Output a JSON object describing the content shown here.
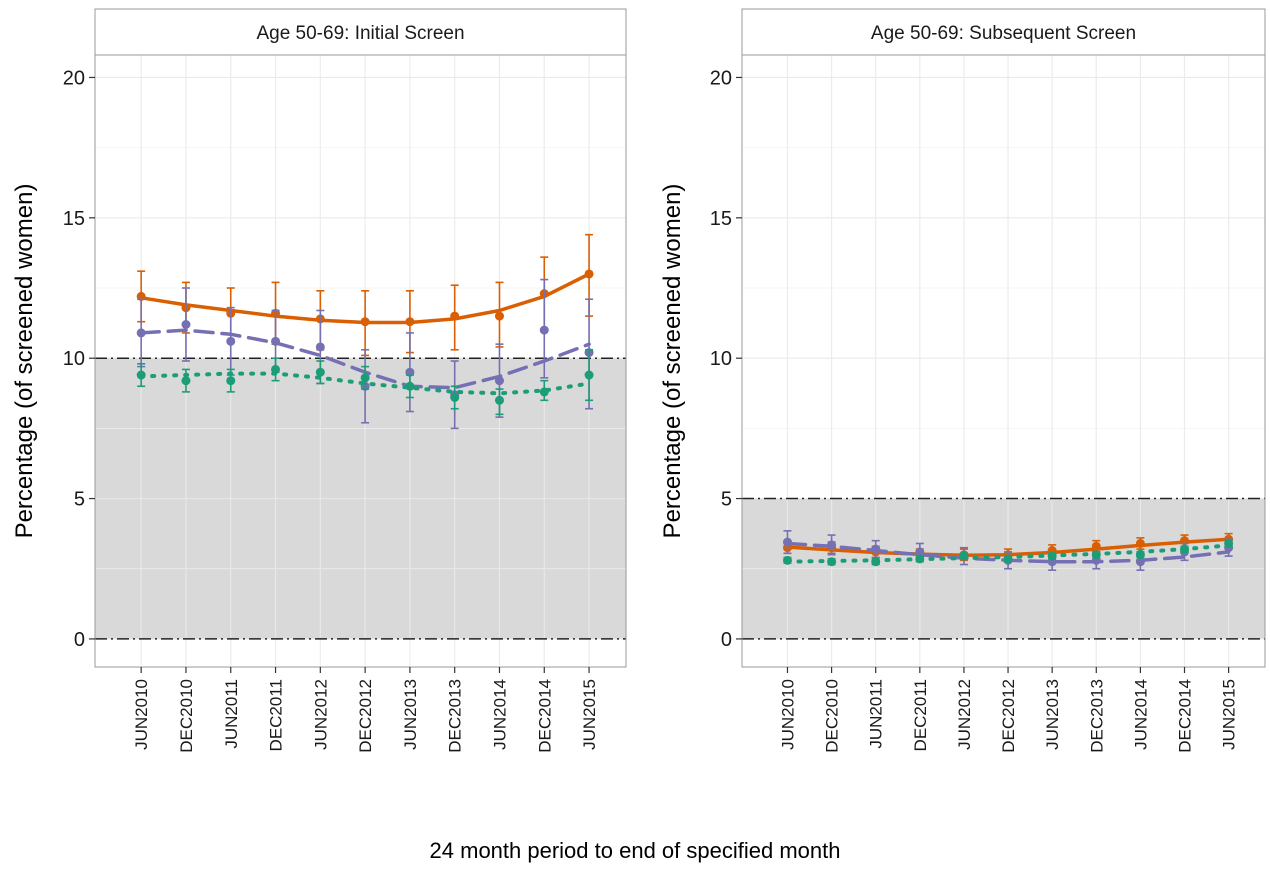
{
  "figure": {
    "x_title": "24 month period to end of specified month"
  },
  "colors": {
    "series_solid": "#d95f02",
    "series_dashed": "#7570b3",
    "series_dotted": "#1b9e77",
    "band": "#d9d9d9"
  },
  "chart_data": [
    {
      "type": "line",
      "title": "Age 50-69: Initial Screen",
      "ylabel": "Percentage (of screened women)",
      "ylim": [
        -1,
        20.8
      ],
      "yticks": [
        0,
        5,
        10,
        15,
        20
      ],
      "categories": [
        "JUN2010",
        "DEC2010",
        "JUN2011",
        "DEC2011",
        "JUN2012",
        "DEC2012",
        "JUN2013",
        "DEC2013",
        "JUN2014",
        "DEC2014",
        "JUN2015"
      ],
      "reference_lines": [
        0,
        10
      ],
      "shaded_band": [
        0,
        10
      ],
      "grid": true,
      "series": [
        {
          "style": "solid",
          "values": [
            12.2,
            11.8,
            11.6,
            11.6,
            11.4,
            11.3,
            11.3,
            11.5,
            11.5,
            12.3,
            13.0
          ],
          "lower": [
            11.3,
            10.9,
            10.6,
            10.5,
            10.3,
            10.1,
            10.2,
            10.3,
            10.4,
            11.0,
            11.5
          ],
          "upper": [
            13.1,
            12.7,
            12.5,
            12.7,
            12.4,
            12.4,
            12.4,
            12.6,
            12.7,
            13.6,
            14.4
          ],
          "fit": [
            12.15,
            11.9,
            11.7,
            11.5,
            11.35,
            11.27,
            11.27,
            11.4,
            11.7,
            12.2,
            13.0
          ]
        },
        {
          "style": "dashed",
          "values": [
            10.9,
            11.2,
            10.6,
            10.6,
            10.4,
            9.0,
            9.5,
            8.7,
            9.2,
            11.0,
            10.2
          ],
          "lower": [
            9.7,
            9.9,
            9.4,
            9.5,
            9.1,
            7.7,
            8.1,
            7.5,
            7.9,
            9.3,
            8.2
          ],
          "upper": [
            12.1,
            12.5,
            11.8,
            11.7,
            11.7,
            10.3,
            10.9,
            9.9,
            10.5,
            12.8,
            12.1
          ],
          "fit": [
            10.9,
            11.0,
            10.85,
            10.55,
            10.1,
            9.5,
            9.0,
            8.95,
            9.35,
            9.9,
            10.5
          ]
        },
        {
          "style": "dotted",
          "values": [
            9.4,
            9.2,
            9.2,
            9.6,
            9.5,
            9.3,
            9.0,
            8.6,
            8.5,
            8.8,
            9.4
          ],
          "lower": [
            9.0,
            8.8,
            8.8,
            9.2,
            9.1,
            8.9,
            8.6,
            8.2,
            8.0,
            8.5,
            8.5
          ],
          "upper": [
            9.8,
            9.6,
            9.6,
            10.0,
            9.9,
            9.7,
            9.4,
            9.0,
            8.9,
            9.2,
            10.3
          ],
          "fit": [
            9.35,
            9.4,
            9.45,
            9.45,
            9.3,
            9.1,
            8.95,
            8.8,
            8.75,
            8.85,
            9.1
          ]
        }
      ]
    },
    {
      "type": "line",
      "title": "Age 50-69: Subsequent Screen",
      "ylabel": "Percentage (of screened women)",
      "ylim": [
        -1,
        20.8
      ],
      "yticks": [
        0,
        5,
        10,
        15,
        20
      ],
      "categories": [
        "JUN2010",
        "DEC2010",
        "JUN2011",
        "DEC2011",
        "JUN2012",
        "DEC2012",
        "JUN2013",
        "DEC2013",
        "JUN2014",
        "DEC2014",
        "JUN2015"
      ],
      "reference_lines": [
        0,
        5
      ],
      "shaded_band": [
        0,
        5
      ],
      "grid": true,
      "series": [
        {
          "style": "solid",
          "values": [
            3.25,
            3.25,
            3.1,
            3.0,
            3.0,
            3.0,
            3.15,
            3.3,
            3.4,
            3.5,
            3.55
          ],
          "lower": [
            3.05,
            3.05,
            2.9,
            2.8,
            2.8,
            2.8,
            2.95,
            3.1,
            3.2,
            3.3,
            3.35
          ],
          "upper": [
            3.45,
            3.45,
            3.3,
            3.2,
            3.2,
            3.2,
            3.35,
            3.5,
            3.6,
            3.7,
            3.75
          ],
          "fit": [
            3.27,
            3.17,
            3.08,
            3.02,
            2.98,
            3.0,
            3.08,
            3.2,
            3.33,
            3.45,
            3.55
          ]
        },
        {
          "style": "dashed",
          "values": [
            3.45,
            3.35,
            3.2,
            3.1,
            2.95,
            2.8,
            2.75,
            2.8,
            2.75,
            3.1,
            3.25
          ],
          "lower": [
            3.05,
            3.0,
            2.9,
            2.8,
            2.65,
            2.5,
            2.45,
            2.5,
            2.45,
            2.8,
            2.95
          ],
          "upper": [
            3.85,
            3.7,
            3.5,
            3.4,
            3.25,
            3.1,
            3.05,
            3.1,
            3.05,
            3.4,
            3.55
          ],
          "fit": [
            3.4,
            3.3,
            3.15,
            3.0,
            2.88,
            2.8,
            2.75,
            2.75,
            2.8,
            2.92,
            3.1
          ]
        },
        {
          "style": "dotted",
          "values": [
            2.8,
            2.75,
            2.75,
            2.85,
            2.95,
            2.85,
            2.95,
            3.0,
            3.0,
            3.2,
            3.4
          ],
          "lower": [
            2.7,
            2.65,
            2.65,
            2.75,
            2.85,
            2.75,
            2.85,
            2.9,
            2.9,
            3.1,
            3.3
          ],
          "upper": [
            2.9,
            2.85,
            2.85,
            2.95,
            3.05,
            2.95,
            3.05,
            3.1,
            3.1,
            3.3,
            3.5
          ],
          "fit": [
            2.75,
            2.78,
            2.8,
            2.84,
            2.88,
            2.92,
            2.97,
            3.03,
            3.1,
            3.2,
            3.33
          ]
        }
      ]
    }
  ]
}
